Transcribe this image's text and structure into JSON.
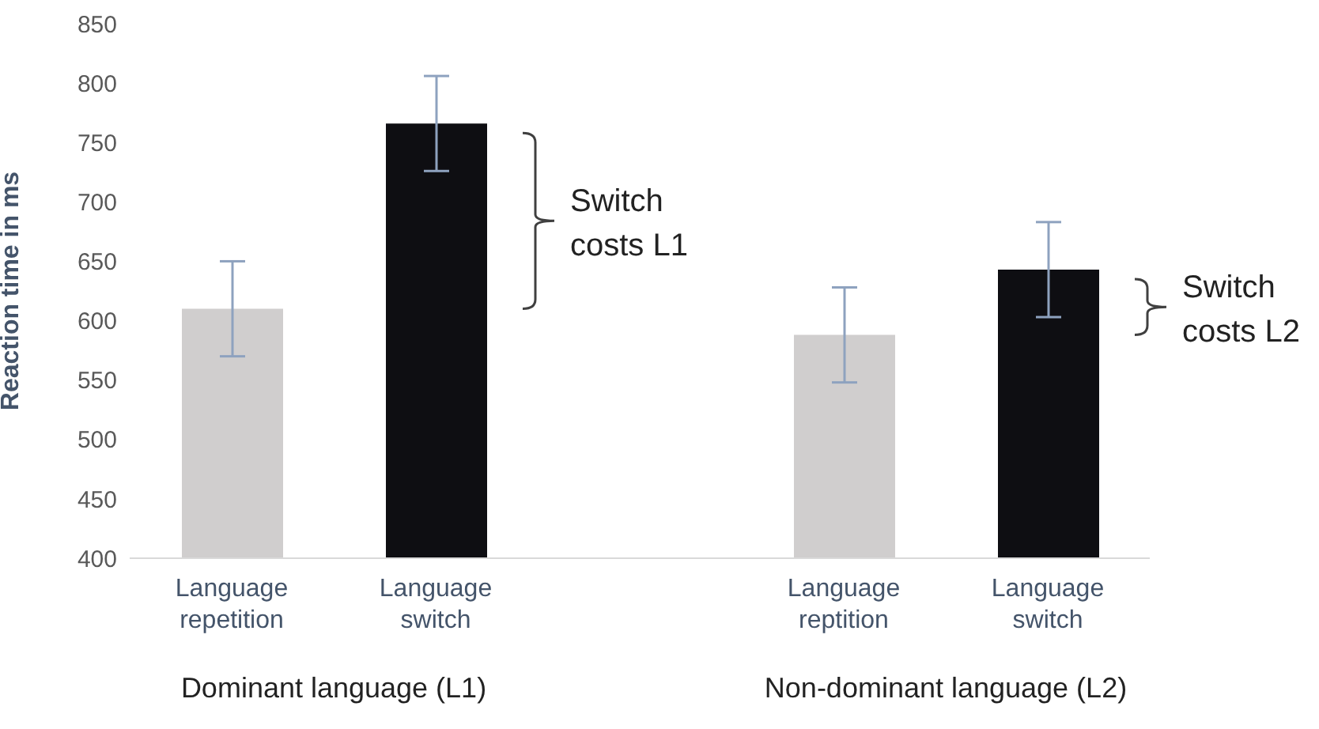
{
  "chart_data": {
    "type": "bar",
    "ylabel": "Reaction time in ms",
    "categories": [
      "Language repetition",
      "Language switch",
      null,
      "Language reptition",
      "Language switch"
    ],
    "values": [
      610,
      766,
      null,
      588,
      643
    ],
    "colors": [
      "#d0cece",
      "#0e0e12",
      null,
      "#d0cece",
      "#0e0e12"
    ],
    "errors": [
      40,
      40,
      null,
      40,
      40
    ],
    "ylim": [
      400,
      850
    ],
    "yticks": [
      400,
      450,
      500,
      550,
      600,
      650,
      700,
      750,
      800,
      850
    ],
    "grid": false,
    "annotations": [
      "Dominant language (L1)",
      "Non-dominant language (L2)",
      "Switch costs L1",
      "Switch costs L2"
    ]
  }
}
